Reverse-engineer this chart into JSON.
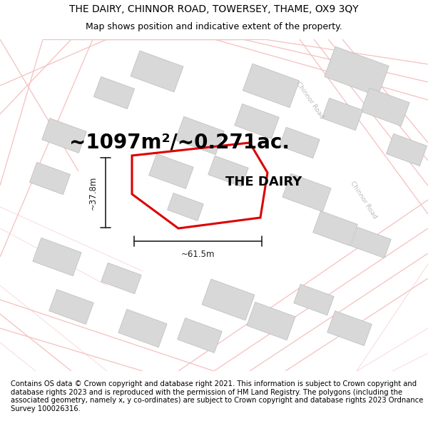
{
  "title_line1": "THE DAIRY, CHINNOR ROAD, TOWERSEY, THAME, OX9 3QY",
  "title_line2": "Map shows position and indicative extent of the property.",
  "area_text": "~1097m²/~0.271ac.",
  "property_label": "THE DAIRY",
  "dim_width": "~61.5m",
  "dim_height": "~37.8m",
  "footer": "Contains OS data © Crown copyright and database right 2021. This information is subject to Crown copyright and database rights 2023 and is reproduced with the permission of HM Land Registry. The polygons (including the associated geometry, namely x, y co-ordinates) are subject to Crown copyright and database rights 2023 Ordnance Survey 100026316.",
  "map_bg": "#ffffff",
  "road_color": "#f5c0c0",
  "building_color": "#d8d8d8",
  "building_edge": "#bbbbbb",
  "highlight_color": "#dd0000",
  "dim_color": "#222222",
  "road_label_color": "#bbbbbb",
  "title_fontsize": 10,
  "subtitle_fontsize": 9,
  "area_fontsize": 20,
  "label_fontsize": 13,
  "footer_fontsize": 7.2,
  "title_weight": "normal"
}
